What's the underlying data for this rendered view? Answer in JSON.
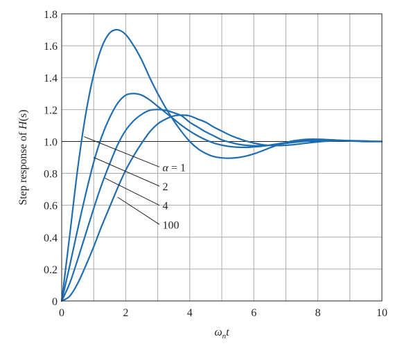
{
  "chart_data": {
    "type": "line",
    "title": "",
    "xlabel_main": "ω",
    "xlabel_sub": "n",
    "xlabel_tail": "t",
    "ylabel_main": "Step response of ",
    "ylabel_italic": "H",
    "ylabel_tail": "(s)",
    "xlim": [
      0,
      10
    ],
    "ylim": [
      0,
      1.8
    ],
    "x_ticks": [
      0,
      2,
      4,
      6,
      8,
      10
    ],
    "x_tick_labels": [
      "0",
      "2",
      "4",
      "6",
      "8",
      "10"
    ],
    "y_ticks": [
      0,
      0.2,
      0.4,
      0.6,
      0.8,
      1.0,
      1.2,
      1.4,
      1.6,
      1.8
    ],
    "y_tick_labels": [
      "0",
      "0.2",
      "0.4",
      "0.6",
      "0.8",
      "1.0",
      "1.2",
      "1.4",
      "1.6",
      "1.8"
    ],
    "grid": true,
    "reference_line_y": 1.0,
    "line_color": "#1f6db1",
    "series": [
      {
        "label": "α = 1",
        "x": [
          0,
          0.25,
          0.5,
          0.75,
          1.0,
          1.25,
          1.5,
          1.75,
          2.0,
          2.25,
          2.5,
          2.75,
          3.0,
          3.25,
          3.5,
          3.75,
          4.0,
          4.25,
          4.5,
          4.75,
          5.0,
          5.25,
          5.5,
          5.75,
          6.0,
          6.25,
          6.5,
          6.75,
          7.0,
          7.25,
          7.5,
          7.75,
          8.0,
          8.25,
          8.5,
          8.75,
          9.0,
          9.25,
          9.5,
          9.75,
          10.0
        ],
        "y": [
          0,
          0.41,
          0.83,
          1.17,
          1.42,
          1.59,
          1.68,
          1.7,
          1.67,
          1.6,
          1.51,
          1.4,
          1.3,
          1.21,
          1.13,
          1.06,
          1.0,
          0.955,
          0.925,
          0.905,
          0.897,
          0.895,
          0.899,
          0.908,
          0.922,
          0.94,
          0.96,
          0.978,
          0.993,
          1.004,
          1.011,
          1.014,
          1.014,
          1.012,
          1.009,
          1.006,
          1.003,
          1.001,
          0.999,
          0.999,
          0.999
        ]
      },
      {
        "label": "2",
        "x": [
          0,
          0.25,
          0.5,
          0.75,
          1.0,
          1.25,
          1.5,
          1.75,
          2.0,
          2.25,
          2.5,
          2.75,
          3.0,
          3.25,
          3.5,
          3.75,
          4.0,
          4.25,
          4.5,
          4.75,
          5.0,
          5.25,
          5.5,
          5.75,
          6.0,
          6.25,
          6.5,
          6.75,
          7.0,
          7.25,
          7.5,
          7.75,
          8.0,
          8.25,
          8.5,
          8.75,
          9.0,
          9.25,
          9.5,
          9.75,
          10.0
        ],
        "y": [
          0,
          0.22,
          0.45,
          0.67,
          0.87,
          1.03,
          1.15,
          1.24,
          1.29,
          1.3,
          1.29,
          1.26,
          1.22,
          1.18,
          1.14,
          1.1,
          1.065,
          1.035,
          1.01,
          0.99,
          0.977,
          0.968,
          0.964,
          0.963,
          0.966,
          0.97,
          0.977,
          0.985,
          0.993,
          1.0,
          1.005,
          1.008,
          1.01,
          1.01,
          1.009,
          1.007,
          1.005,
          1.003,
          1.001,
          1.0,
          1.0
        ]
      },
      {
        "label": "4",
        "x": [
          0,
          0.25,
          0.5,
          0.75,
          1.0,
          1.25,
          1.5,
          1.75,
          2.0,
          2.25,
          2.5,
          2.75,
          3.0,
          3.25,
          3.5,
          3.75,
          4.0,
          4.25,
          4.5,
          4.75,
          5.0,
          5.25,
          5.5,
          5.75,
          6.0,
          6.25,
          6.5,
          6.75,
          7.0,
          7.25,
          7.5,
          7.75,
          8.0,
          8.25,
          8.5,
          8.75,
          9.0,
          9.25,
          9.5,
          9.75,
          10.0
        ],
        "y": [
          0,
          0.11,
          0.26,
          0.42,
          0.58,
          0.73,
          0.86,
          0.98,
          1.07,
          1.13,
          1.17,
          1.195,
          1.2,
          1.195,
          1.18,
          1.16,
          1.12,
          1.09,
          1.06,
          1.035,
          1.01,
          0.995,
          0.983,
          0.976,
          0.973,
          0.973,
          0.976,
          0.981,
          0.988,
          0.994,
          0.999,
          1.003,
          1.006,
          1.007,
          1.007,
          1.006,
          1.004,
          1.003,
          1.001,
          1.0,
          1.0
        ]
      },
      {
        "label": "100",
        "x": [
          0,
          0.25,
          0.5,
          0.75,
          1.0,
          1.25,
          1.5,
          1.75,
          2.0,
          2.25,
          2.5,
          2.75,
          3.0,
          3.25,
          3.5,
          3.75,
          4.0,
          4.25,
          4.5,
          4.75,
          5.0,
          5.25,
          5.5,
          5.75,
          6.0,
          6.25,
          6.5,
          6.75,
          7.0,
          7.25,
          7.5,
          7.75,
          8.0,
          8.25,
          8.5,
          8.75,
          9.0,
          9.25,
          9.5,
          9.75,
          10.0
        ],
        "y": [
          0,
          0.03,
          0.11,
          0.22,
          0.34,
          0.47,
          0.59,
          0.71,
          0.82,
          0.91,
          0.99,
          1.06,
          1.11,
          1.14,
          1.16,
          1.165,
          1.16,
          1.14,
          1.12,
          1.09,
          1.065,
          1.04,
          1.02,
          1.003,
          0.99,
          0.98,
          0.975,
          0.974,
          0.976,
          0.98,
          0.986,
          0.992,
          0.997,
          1.001,
          1.004,
          1.005,
          1.005,
          1.004,
          1.003,
          1.001,
          1.0
        ]
      }
    ],
    "annotations": [
      {
        "alpha": "α",
        "rest": " = 1",
        "from": [
          0.7,
          1.03
        ],
        "to": [
          3.05,
          0.84
        ],
        "text_at": [
          3.15,
          0.84
        ]
      },
      {
        "alpha": "",
        "rest": "2",
        "from": [
          1.0,
          0.9
        ],
        "to": [
          3.05,
          0.72
        ],
        "text_at": [
          3.15,
          0.72
        ]
      },
      {
        "alpha": "",
        "rest": "4",
        "from": [
          1.35,
          0.77
        ],
        "to": [
          3.05,
          0.6
        ],
        "text_at": [
          3.15,
          0.6
        ]
      },
      {
        "alpha": "",
        "rest": "100",
        "from": [
          1.75,
          0.65
        ],
        "to": [
          3.05,
          0.48
        ],
        "text_at": [
          3.15,
          0.48
        ]
      }
    ]
  }
}
